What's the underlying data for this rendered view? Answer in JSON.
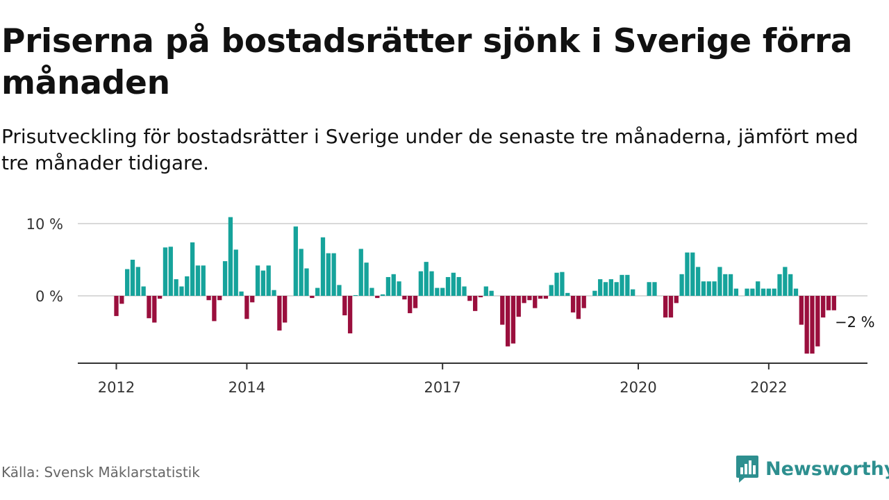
{
  "header": {
    "title": "Priserna på bostadsrätter sjönk i Sverige förra månaden",
    "subtitle": "Prisutveckling för bostadsrätter i Sverige under de senaste tre månaderna, jämfört med tre månader tidigare."
  },
  "footer": {
    "source": "Källa: Svensk Mäklarstatistik",
    "brand": "Newsworthy",
    "brand_icon": "newsworthy-logo-icon"
  },
  "colors": {
    "positive": "#16a39b",
    "negative": "#9a0f3d",
    "brand": "#2d8f8f"
  },
  "chart_data": {
    "type": "bar",
    "start": "2012-01",
    "frequency": "monthly",
    "values": [
      -2.8,
      -1.1,
      3.7,
      5.0,
      4.0,
      1.3,
      -3.1,
      -3.7,
      -0.4,
      6.7,
      6.8,
      2.3,
      1.3,
      2.7,
      7.4,
      4.2,
      4.2,
      -0.6,
      -3.5,
      -0.6,
      4.8,
      10.9,
      6.4,
      0.6,
      -3.2,
      -0.9,
      4.2,
      3.5,
      4.2,
      0.8,
      -4.8,
      -3.7,
      0.0,
      9.6,
      6.5,
      3.8,
      -0.3,
      1.1,
      8.1,
      5.9,
      5.9,
      1.5,
      -2.7,
      -5.2,
      0.1,
      6.5,
      4.6,
      1.1,
      -0.3,
      0.2,
      2.6,
      3.0,
      2.0,
      -0.5,
      -2.4,
      -1.7,
      3.4,
      4.7,
      3.4,
      1.1,
      1.1,
      2.6,
      3.2,
      2.6,
      1.3,
      -0.7,
      -2.1,
      -0.2,
      1.3,
      0.7,
      0.0,
      -4.0,
      -7.0,
      -6.6,
      -2.9,
      -1.0,
      -0.6,
      -1.7,
      -0.4,
      -0.4,
      1.5,
      3.2,
      3.3,
      0.4,
      -2.3,
      -3.2,
      -1.7,
      0.0,
      0.7,
      2.3,
      1.9,
      2.3,
      1.9,
      2.9,
      2.9,
      0.9,
      0.0,
      0.0,
      1.9,
      1.9,
      0.0,
      -3.0,
      -3.0,
      -1.0,
      3.0,
      6.0,
      6.0,
      4.0,
      2.0,
      2.0,
      2.0,
      4.0,
      3.0,
      3.0,
      1.0,
      0.0,
      1.0,
      1.0,
      2.0,
      1.0,
      1.0,
      1.0,
      3.0,
      4.0,
      3.0,
      1.0,
      -4.0,
      -8.0,
      -8.0,
      -7.0,
      -3.0,
      -2.0,
      -2.0
    ],
    "x_ticks": [
      "2012",
      "2014",
      "2017",
      "2020",
      "2022"
    ],
    "y_ticks": [
      "10 %",
      "0 %"
    ],
    "ylim": [
      -9,
      11
    ],
    "last_label": "−2 %"
  }
}
